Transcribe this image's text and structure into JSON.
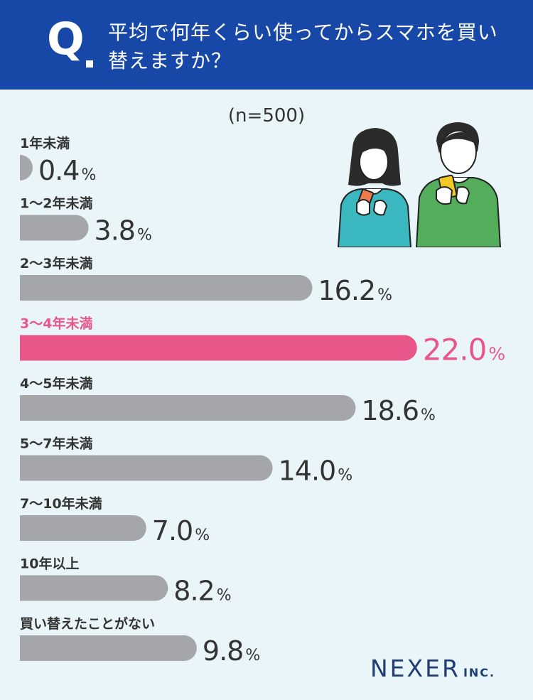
{
  "header": {
    "q_mark": "Q",
    "question": "平均で何年くらい使ってからスマホを買い替えますか？"
  },
  "sample_size": "(n=500)",
  "colors": {
    "bar": "#a4a6a9",
    "highlight": "#e8568a",
    "header": "#1748a8",
    "background": "#e9f5f8"
  },
  "chart_data": {
    "type": "bar",
    "orientation": "horizontal",
    "categories": [
      "1年未満",
      "1〜2年未満",
      "2〜3年未満",
      "3〜4年未満",
      "4〜5年未満",
      "5〜7年未満",
      "7〜10年未満",
      "10年以上",
      "買い替えたことがない"
    ],
    "values": [
      0.4,
      3.8,
      16.2,
      22.0,
      18.6,
      14.0,
      7.0,
      8.2,
      9.8
    ],
    "value_labels": [
      "0.4",
      "3.8",
      "16.2",
      "22.0",
      "18.6",
      "14.0",
      "7.0",
      "8.2",
      "9.8"
    ],
    "unit": "%",
    "highlight_index": 3,
    "title": "",
    "xlabel": "",
    "ylabel": ""
  },
  "illustration": {
    "people": [
      "woman-with-phone",
      "man-with-phone"
    ]
  },
  "logo": {
    "main": "NEXER",
    "suffix": "INC."
  }
}
